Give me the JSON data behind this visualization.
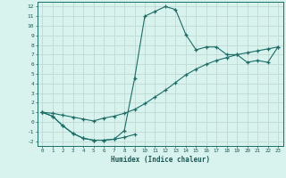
{
  "xlabel": "Humidex (Indice chaleur)",
  "bg_color": "#d8f2ee",
  "grid_color": "#c0d8d4",
  "line_color": "#1a6e66",
  "xlim": [
    -0.5,
    23.5
  ],
  "ylim": [
    -2.5,
    12.5
  ],
  "xticks": [
    0,
    1,
    2,
    3,
    4,
    5,
    6,
    7,
    8,
    9,
    10,
    11,
    12,
    13,
    14,
    15,
    16,
    17,
    18,
    19,
    20,
    21,
    22,
    23
  ],
  "yticks": [
    -2,
    -1,
    0,
    1,
    2,
    3,
    4,
    5,
    6,
    7,
    8,
    9,
    10,
    11,
    12
  ],
  "line1_x": [
    0,
    1,
    2,
    3,
    4,
    5,
    6,
    7,
    8,
    9
  ],
  "line1_y": [
    1.0,
    0.6,
    -0.4,
    -1.2,
    -1.7,
    -1.9,
    -1.9,
    -1.8,
    -1.6,
    -1.3
  ],
  "line2_x": [
    0,
    1,
    2,
    3,
    4,
    5,
    6,
    7,
    8,
    9,
    10,
    11,
    12,
    13,
    14,
    15,
    16,
    17,
    18,
    19,
    20,
    21,
    22,
    23
  ],
  "line2_y": [
    1.0,
    0.9,
    0.7,
    0.5,
    0.3,
    0.1,
    0.4,
    0.6,
    0.9,
    1.3,
    1.9,
    2.6,
    3.3,
    4.1,
    4.9,
    5.5,
    6.0,
    6.4,
    6.7,
    7.0,
    7.2,
    7.4,
    7.6,
    7.8
  ],
  "line3_x": [
    0,
    1,
    2,
    3,
    4,
    5,
    6,
    7,
    8,
    9,
    10,
    11,
    12,
    13,
    14,
    15,
    16,
    17,
    18,
    19,
    20,
    21,
    22,
    23
  ],
  "line3_y": [
    1.0,
    0.6,
    -0.4,
    -1.2,
    -1.7,
    -1.9,
    -1.9,
    -1.8,
    -0.9,
    4.5,
    11.0,
    11.5,
    12.0,
    11.7,
    9.1,
    7.5,
    7.8,
    7.8,
    7.0,
    7.0,
    6.2,
    6.4,
    6.2,
    7.8
  ]
}
